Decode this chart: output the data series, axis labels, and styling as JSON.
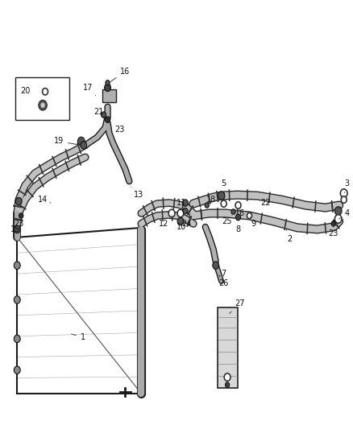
{
  "background_color": "#ffffff",
  "line_color": "#1a1a1a",
  "label_color": "#111111",
  "fig_width": 4.38,
  "fig_height": 5.33,
  "dpi": 100
}
